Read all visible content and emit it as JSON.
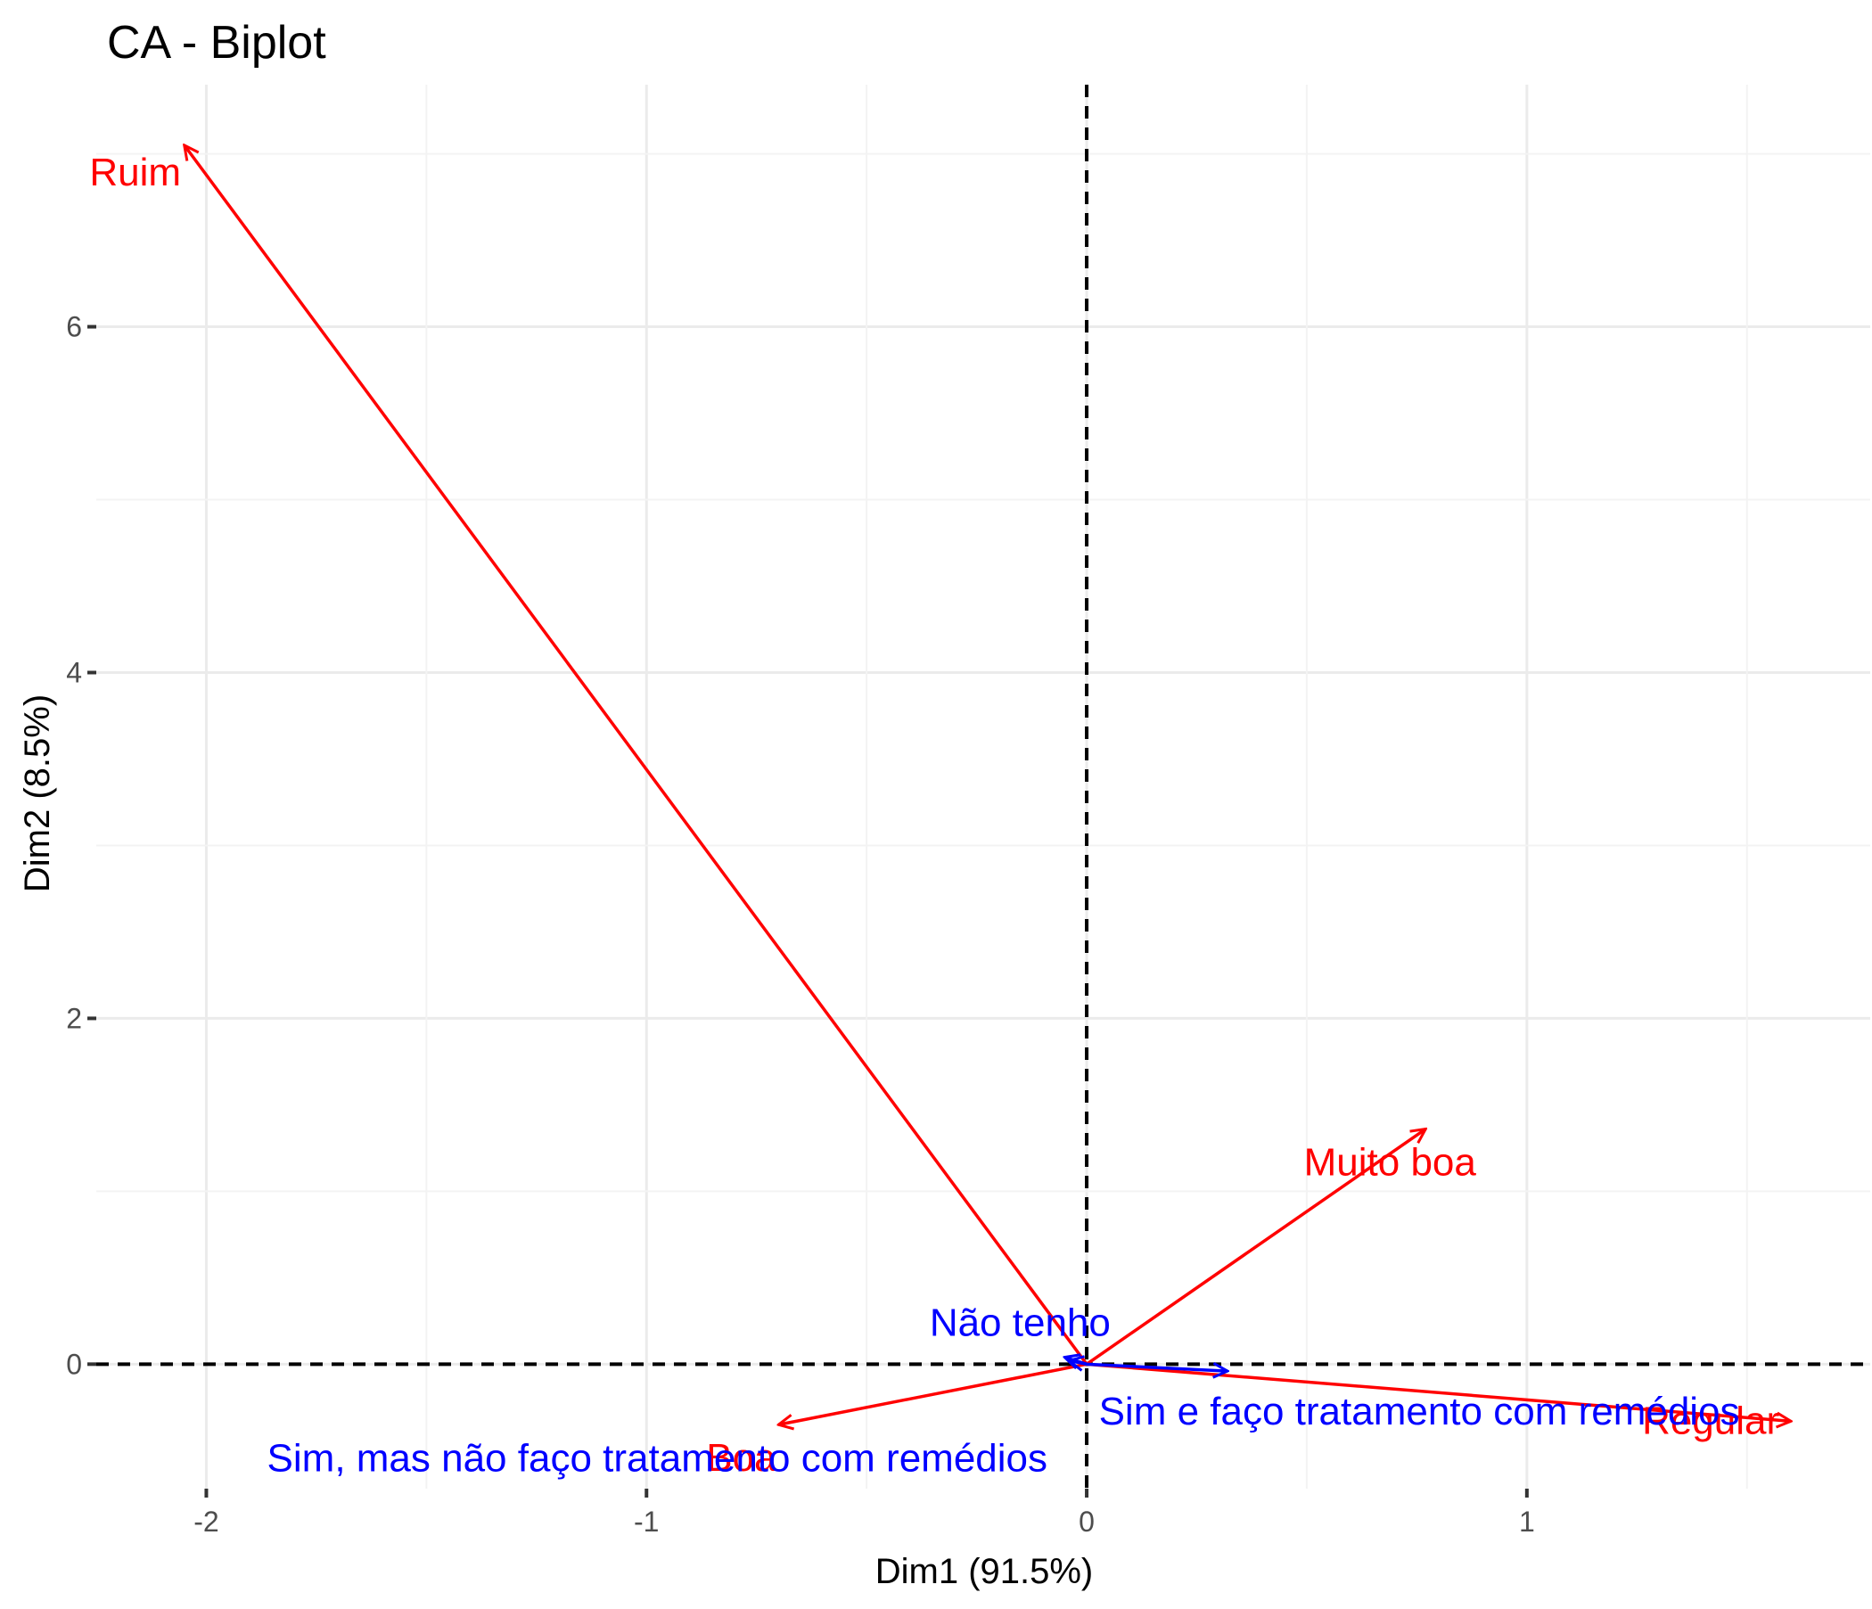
{
  "chart_data": {
    "type": "scatter",
    "title": "CA - Biplot",
    "xlabel": "Dim1 (91.5%)",
    "ylabel": "Dim2 (8.5%)",
    "xlim": [
      -2.25,
      1.78
    ],
    "ylim": [
      -0.72,
      7.4
    ],
    "x_ticks": [
      -2,
      -1,
      0,
      1
    ],
    "x_tick_labels": [
      "-2",
      "-1",
      "0",
      "1"
    ],
    "y_ticks": [
      0,
      2,
      4,
      6
    ],
    "y_tick_labels": [
      "0",
      "2",
      "4",
      "6"
    ],
    "grid": true,
    "reference_lines": [
      0,
      0
    ],
    "series": [
      {
        "name": "",
        "color": "#FF0000",
        "points": [
          {
            "label": "Ruim",
            "x": -2.05,
            "y": 7.05
          },
          {
            "label": "Muito boa",
            "x": 0.77,
            "y": 1.36
          },
          {
            "label": "Regular",
            "x": 1.6,
            "y": -0.33
          },
          {
            "label": "Boa",
            "x": -0.7,
            "y": -0.35
          }
        ]
      },
      {
        "name": "",
        "color": "#0000FF",
        "points": [
          {
            "label": "Não tenho",
            "x": -0.05,
            "y": 0.04
          },
          {
            "label": "Sim e faço tratamento com remédios",
            "x": 0.32,
            "y": -0.04
          },
          {
            "label": "Sim, mas não faço tratamento com remédios",
            "x": -0.04,
            "y": 0.02
          }
        ]
      }
    ]
  }
}
